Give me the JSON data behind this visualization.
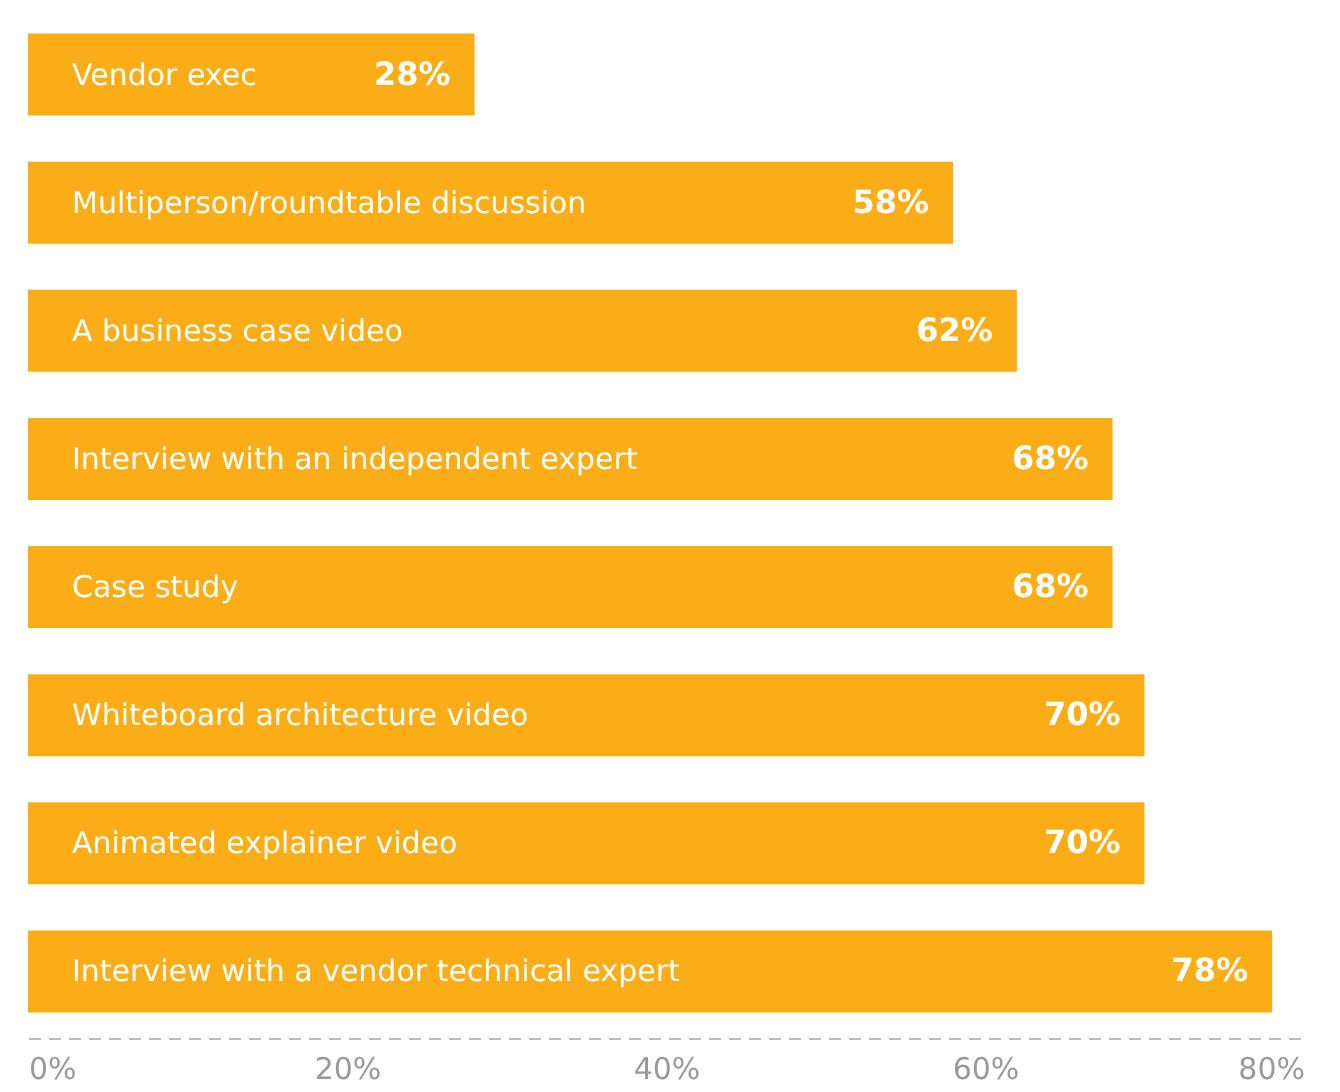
{
  "chart_data": {
    "type": "bar",
    "orientation": "horizontal",
    "categories": [
      "Vendor exec",
      "Multiperson/roundtable discussion",
      "A business case video",
      "Interview with an independent expert",
      "Case study",
      "Whiteboard architecture video",
      "Animated explainer video",
      "Interview with a vendor technical expert"
    ],
    "values": [
      28,
      58,
      62,
      68,
      68,
      70,
      70,
      78
    ],
    "value_labels": [
      "28%",
      "58%",
      "62%",
      "68%",
      "68%",
      "70%",
      "70%",
      "78%"
    ],
    "color": "#fbad18",
    "xlim": [
      0,
      80
    ],
    "xticks": [
      {
        "value": 0,
        "label": "0%"
      },
      {
        "value": 20,
        "label": "20%"
      },
      {
        "value": 40,
        "label": "40%"
      },
      {
        "value": 60,
        "label": "60%"
      },
      {
        "value": 80,
        "label": "80%"
      }
    ],
    "grid": false
  }
}
